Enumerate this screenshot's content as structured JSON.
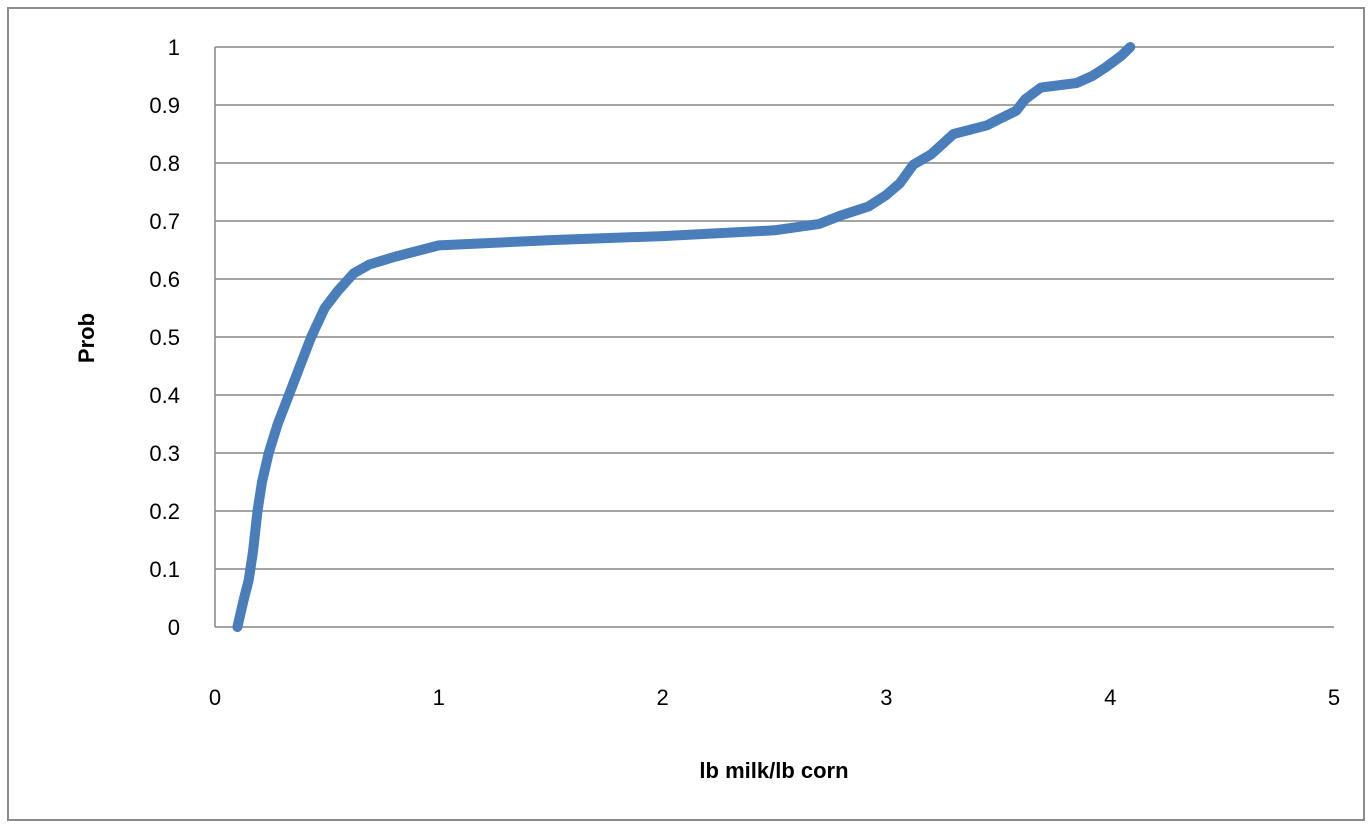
{
  "chart_data": {
    "type": "line",
    "title": "",
    "xlabel": "lb milk/lb corn",
    "ylabel": "Prob",
    "xlim": [
      0,
      5
    ],
    "ylim": [
      0,
      1
    ],
    "x_ticks": [
      "0",
      "1",
      "2",
      "3",
      "4",
      "5"
    ],
    "y_ticks": [
      "0",
      "0.1",
      "0.2",
      "0.3",
      "0.4",
      "0.5",
      "0.6",
      "0.7",
      "0.8",
      "0.9",
      "1"
    ],
    "grid": "horizontal",
    "legend": "none",
    "series": [
      {
        "color": "#4a7ebb",
        "points": [
          [
            0.1,
            0.0
          ],
          [
            0.13,
            0.05
          ],
          [
            0.15,
            0.08
          ],
          [
            0.17,
            0.13
          ],
          [
            0.19,
            0.2
          ],
          [
            0.21,
            0.25
          ],
          [
            0.24,
            0.3
          ],
          [
            0.28,
            0.35
          ],
          [
            0.33,
            0.4
          ],
          [
            0.38,
            0.45
          ],
          [
            0.43,
            0.5
          ],
          [
            0.49,
            0.55
          ],
          [
            0.55,
            0.58
          ],
          [
            0.62,
            0.61
          ],
          [
            0.69,
            0.625
          ],
          [
            0.8,
            0.638
          ],
          [
            1.0,
            0.658
          ],
          [
            1.5,
            0.667
          ],
          [
            2.0,
            0.674
          ],
          [
            2.5,
            0.684
          ],
          [
            2.7,
            0.695
          ],
          [
            2.8,
            0.71
          ],
          [
            2.92,
            0.725
          ],
          [
            3.0,
            0.745
          ],
          [
            3.06,
            0.765
          ],
          [
            3.12,
            0.797
          ],
          [
            3.2,
            0.815
          ],
          [
            3.3,
            0.85
          ],
          [
            3.45,
            0.865
          ],
          [
            3.5,
            0.875
          ],
          [
            3.58,
            0.89
          ],
          [
            3.62,
            0.91
          ],
          [
            3.69,
            0.93
          ],
          [
            3.85,
            0.938
          ],
          [
            3.92,
            0.95
          ],
          [
            3.98,
            0.965
          ],
          [
            4.05,
            0.985
          ],
          [
            4.09,
            1.0
          ]
        ]
      }
    ]
  }
}
